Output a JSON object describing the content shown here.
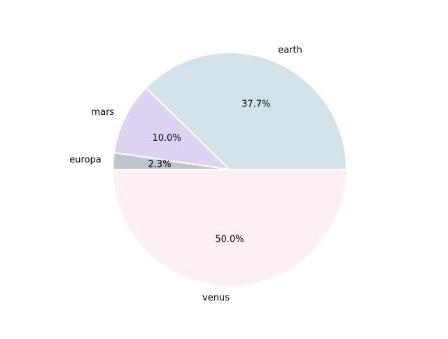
{
  "chart_data": {
    "type": "pie",
    "title": "",
    "start_angle_deg": 0,
    "direction": "counterclockwise",
    "slices": [
      {
        "label": "earth",
        "value": 37.7,
        "pct_label": "37.7%",
        "color": "#d1e2e9"
      },
      {
        "label": "mars",
        "value": 10.0,
        "pct_label": "10.0%",
        "color": "#ded3f3"
      },
      {
        "label": "europa",
        "value": 2.3,
        "pct_label": "2.3%",
        "color": "#c0c6cf"
      },
      {
        "label": "venus",
        "value": 50.0,
        "pct_label": "50.0%",
        "color": "#fff0f4"
      }
    ],
    "wedge_edge_color": "#ffffff"
  }
}
